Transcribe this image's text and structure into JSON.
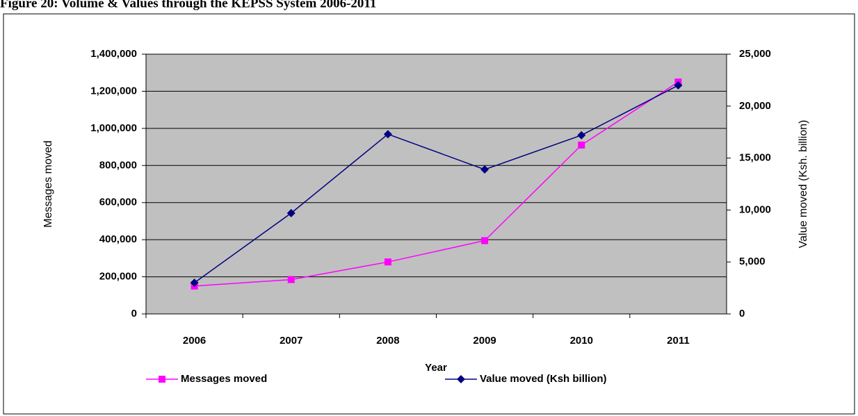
{
  "chart_data": {
    "type": "line",
    "title": "Figure 20: Volume & Values through the KEPSS System 2006-2011",
    "x_label": "Year",
    "y_label": "Messages moved",
    "y2_label": "Value moved (Ksh. billion)",
    "categories": [
      "2006",
      "2007",
      "2008",
      "2009",
      "2010",
      "2011"
    ],
    "series": [
      {
        "name": "Messages moved",
        "color": "#ff00ff",
        "marker": "square",
        "values": [
          150000,
          185000,
          280000,
          395000,
          910000,
          1250000
        ]
      },
      {
        "name": "Value moved (Ksh billion)",
        "color": "#000080",
        "marker": "diamond",
        "axis": "y2",
        "values": [
          3000,
          9700,
          17300,
          13900,
          17200,
          22000
        ]
      }
    ],
    "ylim": [
      0,
      1400000
    ],
    "yticks": [
      0,
      {
        "value": 200000,
        "label": "200,000"
      },
      {
        "value": 400000,
        "label": "400,000"
      },
      {
        "value": 600000,
        "label": "600,000"
      },
      {
        "value": 800000,
        "label": "800,000"
      },
      {
        "value": 1000000,
        "label": "1,000,000"
      },
      {
        "value": 1200000,
        "label": "1,200,000"
      },
      {
        "value": 1400000,
        "label": "1,400,000"
      }
    ],
    "y2lim": [
      0,
      25000
    ],
    "y2ticks": [
      0,
      {
        "value": 5000,
        "label": "5,000"
      },
      {
        "value": 10000,
        "label": "10,000"
      },
      {
        "value": 15000,
        "label": "15,000"
      },
      {
        "value": 20000,
        "label": "20,000"
      },
      {
        "value": 25000,
        "label": "25,000"
      }
    ],
    "grid": true,
    "plot_background": "#c0c0c0",
    "legend": "bottom"
  }
}
